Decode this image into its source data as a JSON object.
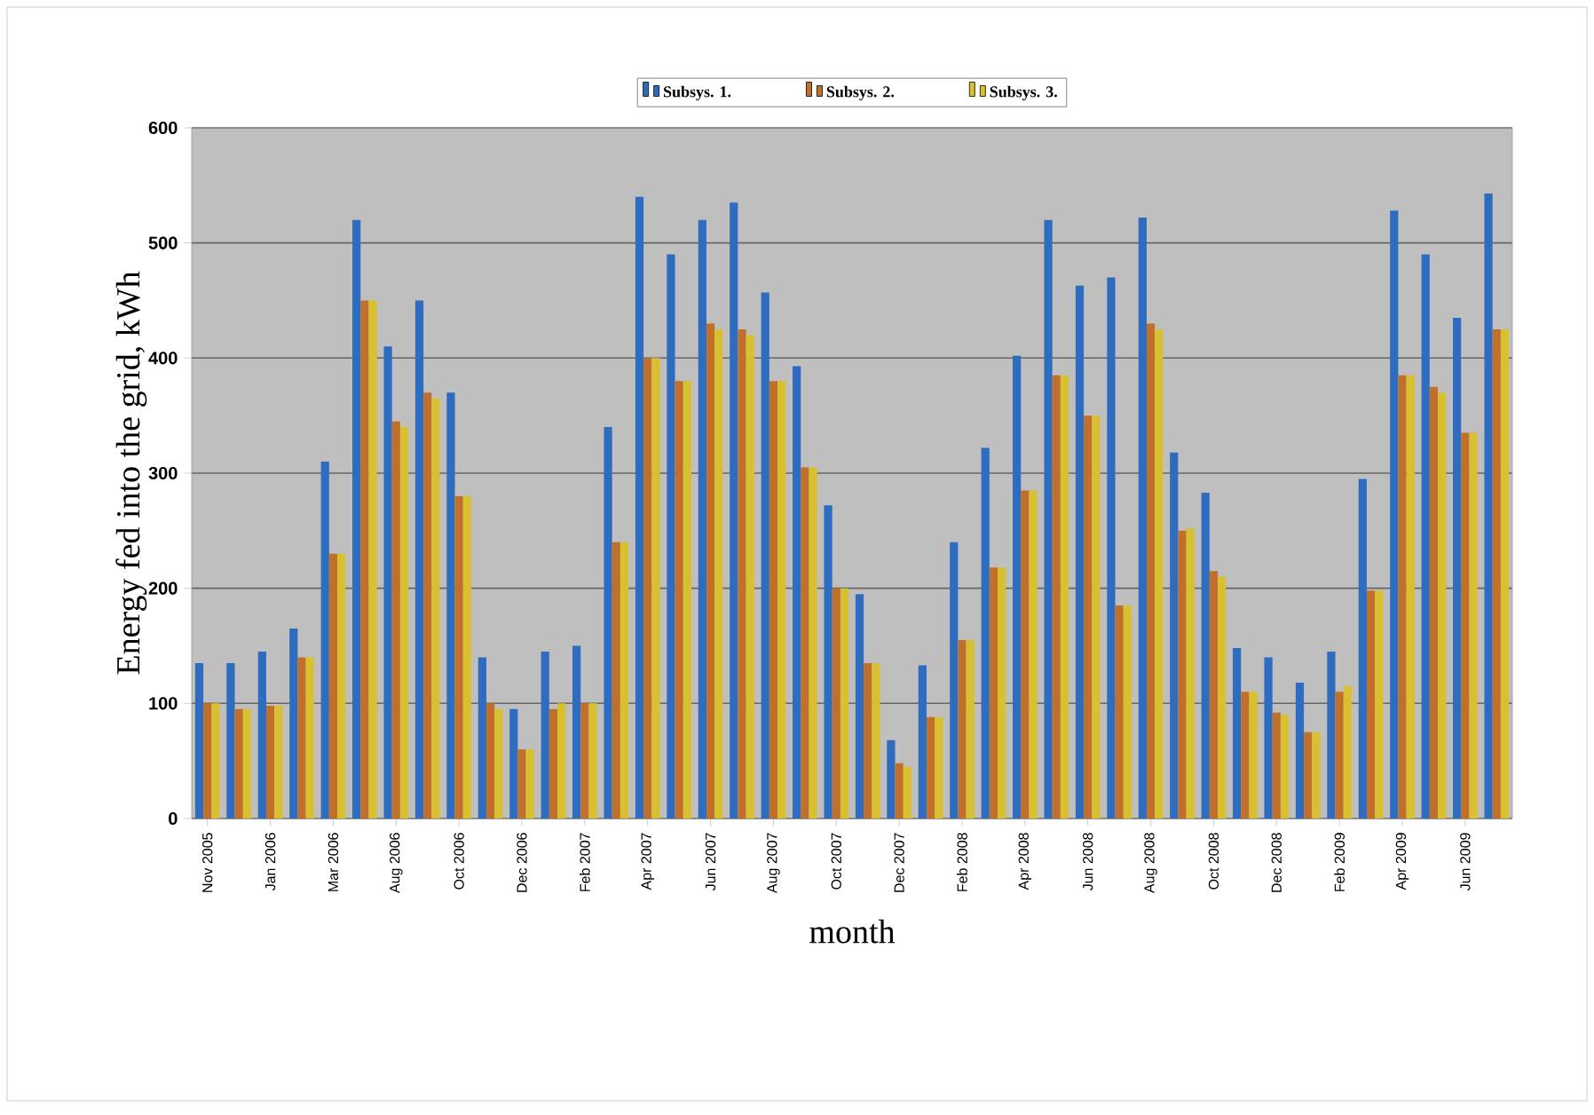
{
  "chart_data": {
    "type": "bar",
    "ylabel": "Energy fed into the grid, kWh",
    "xlabel": "month",
    "categories": [
      "Nov 2005",
      null,
      "Jan 2006",
      null,
      "Mar 2006",
      null,
      "Aug 2006",
      null,
      "Oct 2006",
      null,
      "Dec 2006",
      null,
      "Feb 2007",
      null,
      "Apr 2007",
      null,
      "Jun 2007",
      null,
      "Aug 2007",
      null,
      "Oct 2007",
      null,
      "Dec 2007",
      null,
      "Feb 2008",
      null,
      "Apr 2008",
      null,
      "Jun 2008",
      null,
      "Aug 2008",
      null,
      "Oct 2008",
      null,
      "Dec 2008",
      null,
      "Feb 2009",
      null,
      "Apr 2009",
      null,
      "Jun 2009",
      null
    ],
    "series": [
      {
        "name": "Subsys. 1.",
        "color": "#2e6cc0",
        "values": [
          135,
          135,
          145,
          165,
          310,
          520,
          410,
          450,
          370,
          140,
          95,
          145,
          150,
          340,
          540,
          490,
          520,
          535,
          457,
          393,
          272,
          195,
          68,
          133,
          240,
          322,
          402,
          520,
          463,
          470,
          522,
          318,
          283,
          148,
          140,
          118,
          145,
          295,
          528,
          490,
          435,
          543
        ]
      },
      {
        "name": "Subsys. 2.",
        "color": "#c0702a",
        "values": [
          100,
          95,
          98,
          140,
          230,
          450,
          345,
          370,
          280,
          100,
          60,
          95,
          100,
          240,
          400,
          380,
          430,
          425,
          380,
          305,
          200,
          135,
          48,
          88,
          155,
          218,
          285,
          385,
          350,
          185,
          430,
          250,
          215,
          110,
          92,
          75,
          110,
          198,
          385,
          375,
          335,
          425
        ]
      },
      {
        "name": "Subsys. 3.",
        "color": "#d8c030",
        "values": [
          100,
          95,
          98,
          140,
          230,
          450,
          340,
          365,
          280,
          95,
          60,
          100,
          100,
          240,
          400,
          380,
          425,
          420,
          380,
          305,
          200,
          135,
          45,
          88,
          155,
          218,
          285,
          385,
          350,
          185,
          425,
          252,
          210,
          110,
          90,
          75,
          115,
          198,
          385,
          370,
          335,
          425
        ]
      }
    ],
    "ylim": [
      0,
      600
    ],
    "yticks": [
      0,
      100,
      200,
      300,
      400,
      500,
      600
    ],
    "grid": "y",
    "legend": "top"
  }
}
